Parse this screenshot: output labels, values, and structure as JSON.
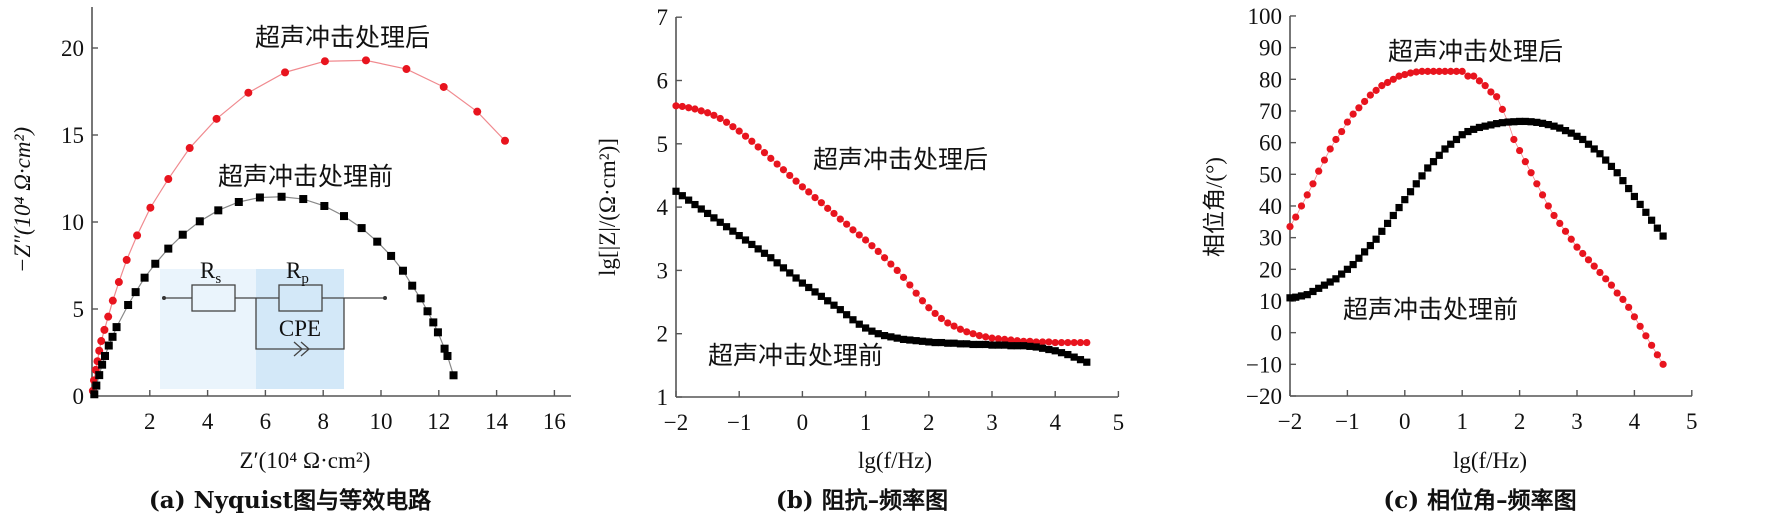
{
  "colors": {
    "after": "#e8141e",
    "before": "#000000",
    "axis": "#555555",
    "inset": "#d6e9f8"
  },
  "chart_data": [
    {
      "id": "a",
      "type": "scatter",
      "caption": "(a) Nyquist图与等效电路",
      "xlabel": "Z′(10⁴ Ω·cm²)",
      "ylabel": "−Z″(10⁴ Ω·cm²)",
      "xlim": [
        0,
        16
      ],
      "ylim": [
        0,
        22
      ],
      "xticks": [
        2,
        4,
        6,
        8,
        10,
        12,
        14,
        16
      ],
      "yticks": [
        0,
        5,
        10,
        15,
        20
      ],
      "annotations": {
        "after": "超声冲击处理后",
        "before": "超声冲击处理前"
      },
      "inset": {
        "rs": "R",
        "rs_sub": "s",
        "rp": "R",
        "rp_sub": "p",
        "cpe": "CPE"
      },
      "series": [
        {
          "name": "超声冲击处理后",
          "marker": "circle",
          "x": [
            0.03,
            0.07,
            0.13,
            0.19,
            0.25,
            0.32,
            0.43,
            0.56,
            0.72,
            0.93,
            1.2,
            1.56,
            2.02,
            2.64,
            3.38,
            4.31,
            5.41,
            6.68,
            8.06,
            9.48,
            10.88,
            12.17,
            13.33,
            14.29
          ],
          "y": [
            0.3,
            0.9,
            1.5,
            2.0,
            2.6,
            3.16,
            3.8,
            4.56,
            5.48,
            6.55,
            7.82,
            9.23,
            10.82,
            12.47,
            14.25,
            15.93,
            17.43,
            18.6,
            19.24,
            19.29,
            18.79,
            17.76,
            16.34,
            14.67
          ]
        },
        {
          "name": "超声冲击处理前",
          "marker": "square",
          "x": [
            0.08,
            0.15,
            0.25,
            0.35,
            0.45,
            0.58,
            0.71,
            0.85,
            1.25,
            1.51,
            1.82,
            2.19,
            2.64,
            3.14,
            3.73,
            4.37,
            5.08,
            5.81,
            6.56,
            7.31,
            8.04,
            8.72,
            9.33,
            9.87,
            10.35,
            10.76,
            11.08,
            11.37,
            11.61,
            11.81,
            11.97,
            12.2,
            12.3,
            12.51
          ],
          "y": [
            0.1,
            0.6,
            1.2,
            1.8,
            2.3,
            2.9,
            3.4,
            3.96,
            5.23,
            5.97,
            6.8,
            7.6,
            8.47,
            9.27,
            10.04,
            10.67,
            11.15,
            11.41,
            11.45,
            11.32,
            10.92,
            10.34,
            9.65,
            8.87,
            8.05,
            7.2,
            6.34,
            5.61,
            4.87,
            4.23,
            3.66,
            2.72,
            2.3,
            1.19
          ]
        }
      ]
    },
    {
      "id": "b",
      "type": "scatter",
      "caption": "(b) 阻抗–频率图",
      "xlabel": "lg(f/Hz)",
      "ylabel": "lg[|Z|/(Ω·cm²)]",
      "xlim": [
        -2,
        5
      ],
      "ylim": [
        1,
        7
      ],
      "xticks": [
        -2,
        -1,
        0,
        1,
        2,
        3,
        4,
        5
      ],
      "yticks": [
        1,
        2,
        3,
        4,
        5,
        6,
        7
      ],
      "annotations": {
        "after": "超声冲击处理后",
        "before": "超声冲击处理前"
      },
      "x_start": -2,
      "x_step": 0.1,
      "series": [
        {
          "name": "超声冲击处理后",
          "marker": "circle",
          "y": [
            5.6,
            5.59,
            5.57,
            5.55,
            5.52,
            5.49,
            5.45,
            5.4,
            5.34,
            5.27,
            5.2,
            5.12,
            5.04,
            4.95,
            4.86,
            4.77,
            4.68,
            4.59,
            4.5,
            4.41,
            4.32,
            4.24,
            4.15,
            4.07,
            3.98,
            3.9,
            3.81,
            3.73,
            3.64,
            3.56,
            3.48,
            3.39,
            3.3,
            3.2,
            3.1,
            3.0,
            2.89,
            2.77,
            2.64,
            2.52,
            2.41,
            2.32,
            2.24,
            2.17,
            2.12,
            2.07,
            2.03,
            2.0,
            1.97,
            1.95,
            1.93,
            1.92,
            1.91,
            1.9,
            1.89,
            1.88,
            1.88,
            1.87,
            1.87,
            1.87,
            1.86,
            1.86,
            1.86,
            1.86,
            1.86,
            1.86
          ]
        },
        {
          "name": "超声冲击处理前",
          "marker": "square",
          "y": [
            4.25,
            4.18,
            4.11,
            4.04,
            3.97,
            3.9,
            3.83,
            3.76,
            3.69,
            3.62,
            3.55,
            3.48,
            3.41,
            3.34,
            3.27,
            3.2,
            3.12,
            3.04,
            2.96,
            2.88,
            2.8,
            2.73,
            2.66,
            2.59,
            2.52,
            2.45,
            2.38,
            2.3,
            2.22,
            2.15,
            2.09,
            2.04,
            2.0,
            1.97,
            1.95,
            1.93,
            1.91,
            1.9,
            1.89,
            1.88,
            1.87,
            1.86,
            1.86,
            1.85,
            1.85,
            1.84,
            1.84,
            1.83,
            1.83,
            1.83,
            1.82,
            1.82,
            1.82,
            1.81,
            1.81,
            1.81,
            1.8,
            1.79,
            1.77,
            1.75,
            1.73,
            1.7,
            1.67,
            1.63,
            1.59,
            1.55
          ]
        }
      ]
    },
    {
      "id": "c",
      "type": "scatter",
      "caption": "(c) 相位角–频率图",
      "xlabel": "lg(f/Hz)",
      "ylabel": "相位角/(°)",
      "xlim": [
        -2,
        5
      ],
      "ylim": [
        -20,
        100
      ],
      "xticks": [
        -2,
        -1,
        0,
        1,
        2,
        3,
        4,
        5
      ],
      "yticks": [
        -20,
        -10,
        0,
        10,
        20,
        30,
        40,
        50,
        60,
        70,
        80,
        90,
        100
      ],
      "annotations": {
        "after": "超声冲击处理后",
        "before": "超声冲击处理前"
      },
      "x_start": -2,
      "x_step": 0.1,
      "series": [
        {
          "name": "超声冲击处理后",
          "marker": "circle",
          "y": [
            33.5,
            36.5,
            40,
            43.5,
            47,
            51,
            54.5,
            58,
            61,
            63.5,
            66.5,
            69,
            71,
            73,
            75,
            76.5,
            78,
            79,
            80,
            81,
            81.5,
            82,
            82.3,
            82.5,
            82.5,
            82.5,
            82.5,
            82.5,
            82.5,
            82.5,
            82.5,
            81,
            81,
            79.5,
            78,
            76,
            74.5,
            70.5,
            66.5,
            61,
            57.5,
            54,
            50.5,
            47,
            43.5,
            40,
            37,
            34.5,
            32,
            29.5,
            27,
            25,
            23,
            21,
            19,
            17,
            15,
            12.5,
            10.5,
            8,
            5,
            2,
            -1,
            -4,
            -7,
            -10
          ]
        },
        {
          "name": "超声冲击处理前",
          "marker": "square",
          "y": [
            11,
            11.2,
            11.6,
            12,
            13,
            14,
            15,
            16,
            17,
            18.5,
            20,
            21.5,
            23.5,
            25.5,
            27.5,
            29.5,
            32,
            34.5,
            37,
            39.5,
            42,
            44.5,
            47,
            49.5,
            52,
            54,
            56,
            58,
            59.5,
            61,
            62.5,
            63.5,
            64.2,
            64.8,
            65.2,
            65.6,
            66,
            66.3,
            66.5,
            66.6,
            66.7,
            66.7,
            66.6,
            66.4,
            66.1,
            65.7,
            65.2,
            64.6,
            63.8,
            63,
            62,
            61,
            59.5,
            58,
            56.5,
            54.5,
            52.5,
            50.5,
            48,
            45.5,
            43,
            40.5,
            38,
            35.5,
            33,
            30.5
          ]
        }
      ]
    }
  ]
}
